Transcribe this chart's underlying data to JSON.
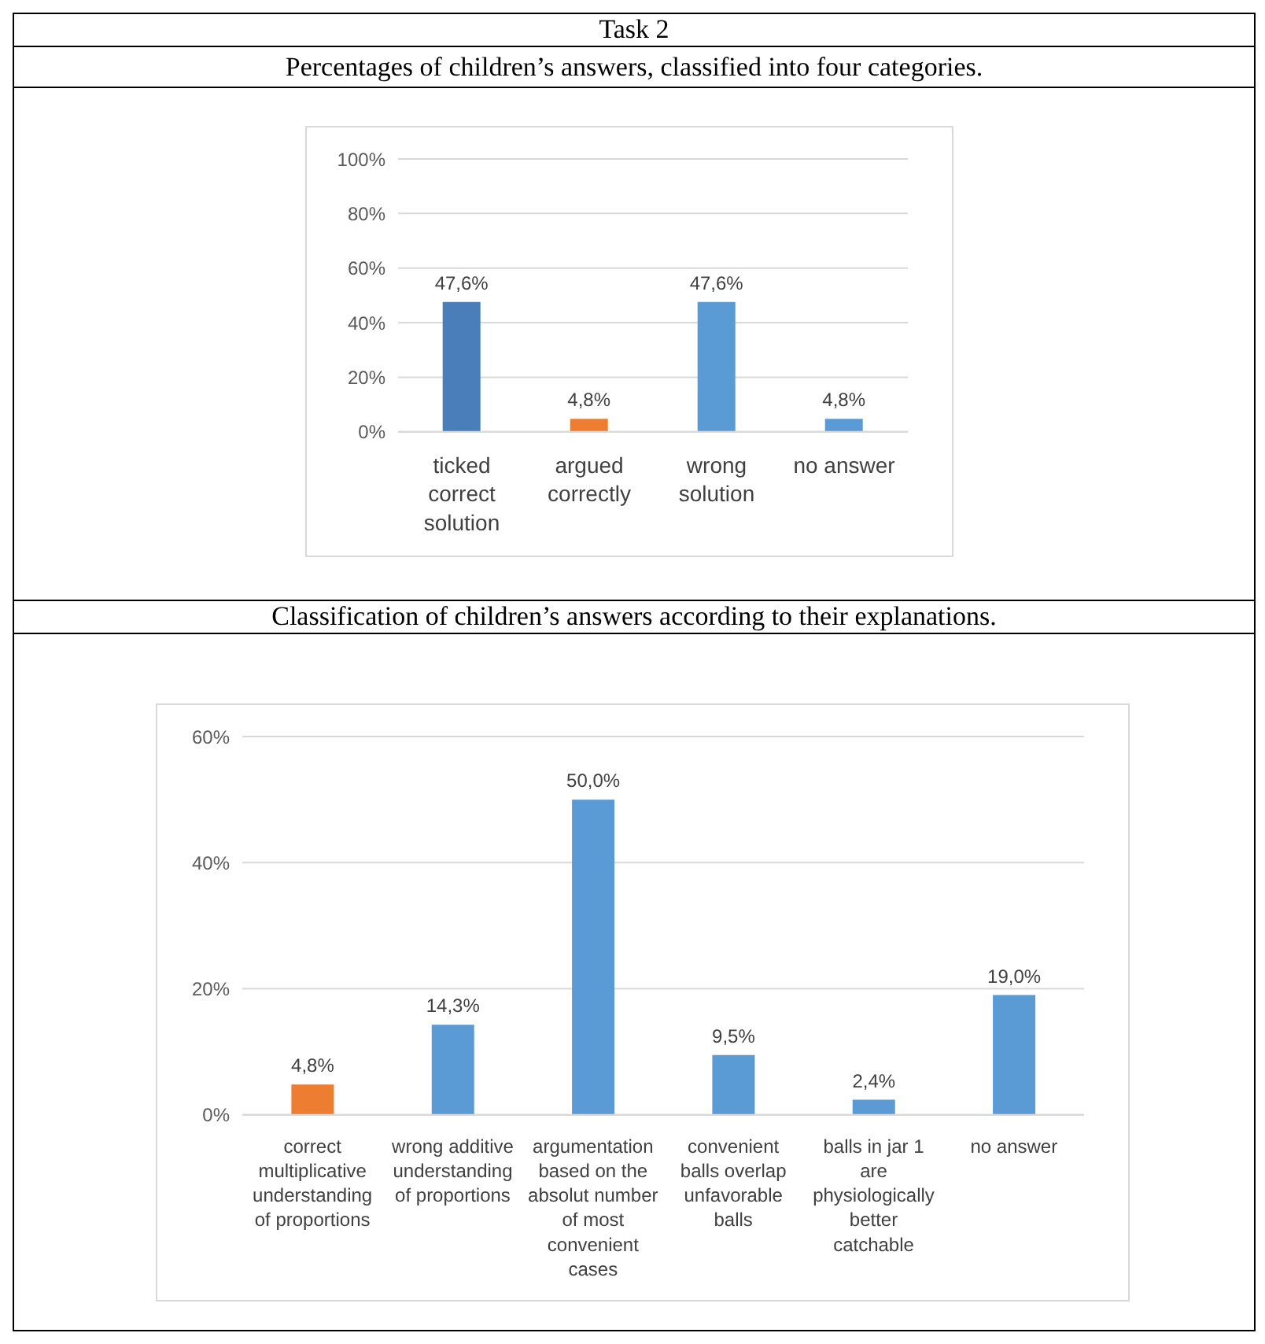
{
  "chart_data": [
    {
      "type": "bar",
      "title": "Task 2",
      "subtitle": "Percentages of children’s answers, classified into four categories.",
      "categories": [
        "ticked correct solution",
        "argued correctly",
        "wrong solution",
        "no answer"
      ],
      "values": [
        47.6,
        4.8,
        47.6,
        4.8
      ],
      "colors": [
        "#4a7ebb",
        "#ed7d31",
        "#5b9bd5",
        "#5b9bd5"
      ],
      "value_labels": [
        "47,6%",
        "4,8%",
        "47,6%",
        "4,8%"
      ],
      "ylim": [
        0,
        100
      ],
      "yticks": [
        {
          "value": 0,
          "label": "0%"
        },
        {
          "value": 20,
          "label": "20%"
        },
        {
          "value": 40,
          "label": "40%"
        },
        {
          "value": 60,
          "label": "60%"
        },
        {
          "value": 80,
          "label": "80%"
        },
        {
          "value": 100,
          "label": "100%"
        }
      ],
      "grid": "y"
    },
    {
      "type": "bar",
      "title": "Classification of children’s answers according to their explanations.",
      "categories": [
        "correct multiplicative understanding of proportions",
        "wrong additive understanding of proportions",
        "argumentation based on the absolut number of most convenient cases",
        "convenient balls overlap unfavorable balls",
        "balls in jar 1 are physiologically better catchable",
        "no answer"
      ],
      "values": [
        4.8,
        14.3,
        50.0,
        9.5,
        2.4,
        19.0
      ],
      "colors": [
        "#ed7d31",
        "#5b9bd5",
        "#5b9bd5",
        "#5b9bd5",
        "#5b9bd5",
        "#5b9bd5"
      ],
      "value_labels": [
        "4,8%",
        "14,3%",
        "50,0%",
        "9,5%",
        "2,4%",
        "19,0%"
      ],
      "ylim": [
        0,
        60
      ],
      "yticks": [
        {
          "value": 0,
          "label": "0%"
        },
        {
          "value": 20,
          "label": "20%"
        },
        {
          "value": 40,
          "label": "40%"
        },
        {
          "value": 60,
          "label": "60%"
        }
      ],
      "grid": "y"
    }
  ]
}
